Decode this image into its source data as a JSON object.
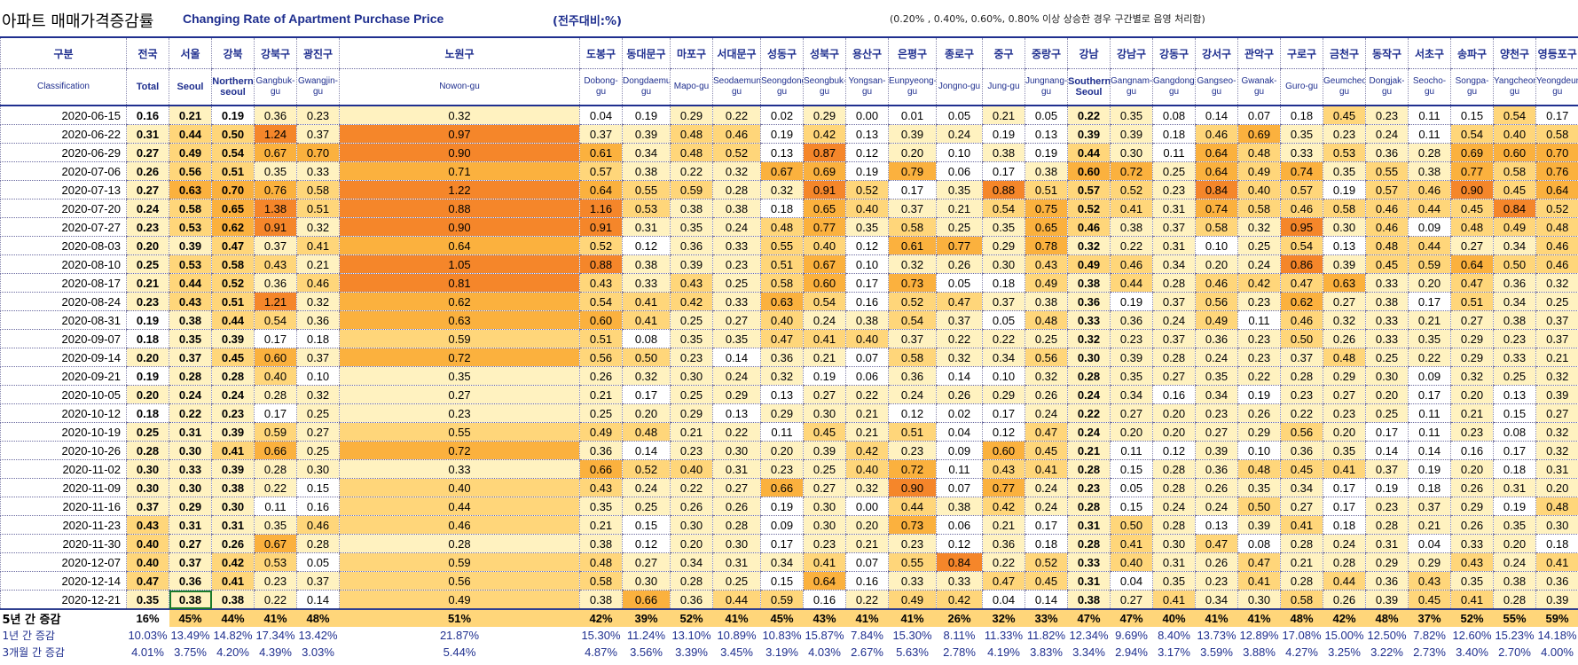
{
  "header": {
    "title_kr": "아파트 매매가격증감률",
    "title_en": "Changing Rate of Apartment Purchase Price",
    "unit": "(전주대비:%)",
    "note": "(0.20% , 0.40%, 0.60%, 0.80% 이상 상승한 경우 구간별로 음영 처리함)"
  },
  "colors": {
    "band_0": "#ffffff",
    "band_1": "#fff2c0",
    "band_2": "#ffd67a",
    "band_3": "#fbb13e",
    "band_4": "#f5862a",
    "header_text": "#1f2f8f"
  },
  "columns": [
    {
      "kr": "구분",
      "en": "Classification"
    },
    {
      "kr": "전국",
      "en": "Total",
      "bold": true
    },
    {
      "kr": "서울",
      "en": "Seoul",
      "bold": true
    },
    {
      "kr": "강북",
      "en": "Northern seoul",
      "bold": true
    },
    {
      "kr": "강북구",
      "en": "Gangbuk-gu"
    },
    {
      "kr": "광진구",
      "en": "Gwangjin-gu"
    },
    {
      "kr": "노원구",
      "en": "Nowon-gu"
    },
    {
      "kr": "도봉구",
      "en": "Dobong-gu"
    },
    {
      "kr": "동대문구",
      "en": "Dongdaemun-gu"
    },
    {
      "kr": "마포구",
      "en": "Mapo-gu"
    },
    {
      "kr": "서대문구",
      "en": "Seodaemun-gu"
    },
    {
      "kr": "성동구",
      "en": "Seongdong-gu"
    },
    {
      "kr": "성북구",
      "en": "Seongbuk-gu"
    },
    {
      "kr": "용산구",
      "en": "Yongsan-gu"
    },
    {
      "kr": "은평구",
      "en": "Eunpyeong-gu"
    },
    {
      "kr": "종로구",
      "en": "Jongno-gu"
    },
    {
      "kr": "중구",
      "en": "Jung-gu"
    },
    {
      "kr": "중랑구",
      "en": "Jungnang-gu"
    },
    {
      "kr": "강남",
      "en": "Southern Seoul",
      "bold": true
    },
    {
      "kr": "강남구",
      "en": "Gangnam-gu"
    },
    {
      "kr": "강동구",
      "en": "Gangdong-gu"
    },
    {
      "kr": "강서구",
      "en": "Gangseo-gu"
    },
    {
      "kr": "관악구",
      "en": "Gwanak-gu"
    },
    {
      "kr": "구로구",
      "en": "Guro-gu"
    },
    {
      "kr": "금천구",
      "en": "Geumcheon-gu"
    },
    {
      "kr": "동작구",
      "en": "Dongjak-gu"
    },
    {
      "kr": "서초구",
      "en": "Seocho-gu"
    },
    {
      "kr": "송파구",
      "en": "Songpa-gu"
    },
    {
      "kr": "양천구",
      "en": "Yangcheon-gu"
    },
    {
      "kr": "영등포구",
      "en": "Yeongdeungpo-gu"
    }
  ],
  "rows": [
    {
      "date": "2020-06-15",
      "values": [
        "0.16",
        "0.21",
        "0.19",
        "0.36",
        "0.23",
        "0.32",
        "0.04",
        "0.19",
        "0.29",
        "0.22",
        "0.02",
        "0.29",
        "0.00",
        "0.01",
        "0.05",
        "0.21",
        "0.05",
        "0.22",
        "0.35",
        "0.08",
        "0.14",
        "0.07",
        "0.18",
        "0.45",
        "0.23",
        "0.11",
        "0.15",
        "0.54",
        "0.17"
      ]
    },
    {
      "date": "2020-06-22",
      "values": [
        "0.31",
        "0.44",
        "0.50",
        "1.24",
        "0.37",
        "0.97",
        "0.37",
        "0.39",
        "0.48",
        "0.46",
        "0.19",
        "0.42",
        "0.13",
        "0.39",
        "0.24",
        "0.19",
        "0.13",
        "0.39",
        "0.39",
        "0.18",
        "0.46",
        "0.69",
        "0.35",
        "0.23",
        "0.24",
        "0.11",
        "0.54",
        "0.40",
        "0.58"
      ]
    },
    {
      "date": "2020-06-29",
      "values": [
        "0.27",
        "0.49",
        "0.54",
        "0.67",
        "0.70",
        "0.90",
        "0.61",
        "0.34",
        "0.48",
        "0.52",
        "0.13",
        "0.87",
        "0.12",
        "0.20",
        "0.10",
        "0.38",
        "0.19",
        "0.44",
        "0.30",
        "0.11",
        "0.64",
        "0.48",
        "0.33",
        "0.53",
        "0.36",
        "0.28",
        "0.69",
        "0.60",
        "0.70"
      ]
    },
    {
      "date": "2020-07-06",
      "values": [
        "0.26",
        "0.56",
        "0.51",
        "0.35",
        "0.33",
        "0.71",
        "0.57",
        "0.38",
        "0.22",
        "0.32",
        "0.67",
        "0.69",
        "0.19",
        "0.79",
        "0.06",
        "0.17",
        "0.38",
        "0.60",
        "0.72",
        "0.25",
        "0.64",
        "0.49",
        "0.74",
        "0.35",
        "0.55",
        "0.38",
        "0.77",
        "0.58",
        "0.76"
      ]
    },
    {
      "date": "2020-07-13",
      "values": [
        "0.27",
        "0.63",
        "0.70",
        "0.76",
        "0.58",
        "1.22",
        "0.64",
        "0.55",
        "0.59",
        "0.28",
        "0.32",
        "0.91",
        "0.52",
        "0.17",
        "0.35",
        "0.88",
        "0.51",
        "0.57",
        "0.52",
        "0.23",
        "0.84",
        "0.40",
        "0.57",
        "0.19",
        "0.57",
        "0.46",
        "0.90",
        "0.45",
        "0.64"
      ]
    },
    {
      "date": "2020-07-20",
      "values": [
        "0.24",
        "0.58",
        "0.65",
        "1.38",
        "0.51",
        "0.88",
        "1.16",
        "0.53",
        "0.38",
        "0.38",
        "0.18",
        "0.65",
        "0.40",
        "0.37",
        "0.21",
        "0.54",
        "0.75",
        "0.52",
        "0.41",
        "0.31",
        "0.74",
        "0.58",
        "0.46",
        "0.58",
        "0.46",
        "0.44",
        "0.45",
        "0.84",
        "0.52"
      ]
    },
    {
      "date": "2020-07-27",
      "values": [
        "0.23",
        "0.53",
        "0.62",
        "0.91",
        "0.32",
        "0.90",
        "0.91",
        "0.31",
        "0.35",
        "0.24",
        "0.48",
        "0.77",
        "0.35",
        "0.58",
        "0.25",
        "0.35",
        "0.65",
        "0.46",
        "0.38",
        "0.37",
        "0.58",
        "0.32",
        "0.95",
        "0.30",
        "0.46",
        "0.09",
        "0.48",
        "0.49",
        "0.48"
      ]
    },
    {
      "date": "2020-08-03",
      "values": [
        "0.20",
        "0.39",
        "0.47",
        "0.37",
        "0.41",
        "0.64",
        "0.52",
        "0.12",
        "0.36",
        "0.33",
        "0.55",
        "0.40",
        "0.12",
        "0.61",
        "0.77",
        "0.29",
        "0.78",
        "0.32",
        "0.22",
        "0.31",
        "0.10",
        "0.25",
        "0.54",
        "0.13",
        "0.48",
        "0.44",
        "0.27",
        "0.34",
        "0.46"
      ]
    },
    {
      "date": "2020-08-10",
      "values": [
        "0.25",
        "0.53",
        "0.58",
        "0.43",
        "0.21",
        "1.05",
        "0.88",
        "0.38",
        "0.39",
        "0.23",
        "0.51",
        "0.67",
        "0.10",
        "0.32",
        "0.26",
        "0.30",
        "0.43",
        "0.49",
        "0.46",
        "0.34",
        "0.20",
        "0.24",
        "0.86",
        "0.39",
        "0.45",
        "0.59",
        "0.64",
        "0.50",
        "0.46"
      ]
    },
    {
      "date": "2020-08-17",
      "values": [
        "0.21",
        "0.44",
        "0.52",
        "0.36",
        "0.46",
        "0.81",
        "0.43",
        "0.33",
        "0.43",
        "0.25",
        "0.58",
        "0.60",
        "0.17",
        "0.73",
        "0.05",
        "0.18",
        "0.49",
        "0.38",
        "0.44",
        "0.28",
        "0.46",
        "0.42",
        "0.47",
        "0.63",
        "0.33",
        "0.20",
        "0.47",
        "0.36",
        "0.32"
      ]
    },
    {
      "date": "2020-08-24",
      "values": [
        "0.23",
        "0.43",
        "0.51",
        "1.21",
        "0.32",
        "0.62",
        "0.54",
        "0.41",
        "0.42",
        "0.33",
        "0.63",
        "0.54",
        "0.16",
        "0.52",
        "0.47",
        "0.37",
        "0.38",
        "0.36",
        "0.19",
        "0.37",
        "0.56",
        "0.23",
        "0.62",
        "0.27",
        "0.38",
        "0.17",
        "0.51",
        "0.34",
        "0.25"
      ]
    },
    {
      "date": "2020-08-31",
      "values": [
        "0.19",
        "0.38",
        "0.44",
        "0.54",
        "0.36",
        "0.63",
        "0.60",
        "0.41",
        "0.25",
        "0.27",
        "0.40",
        "0.24",
        "0.38",
        "0.54",
        "0.37",
        "0.05",
        "0.48",
        "0.33",
        "0.36",
        "0.24",
        "0.49",
        "0.11",
        "0.46",
        "0.32",
        "0.33",
        "0.21",
        "0.27",
        "0.38",
        "0.37"
      ]
    },
    {
      "date": "2020-09-07",
      "values": [
        "0.18",
        "0.35",
        "0.39",
        "0.17",
        "0.18",
        "0.59",
        "0.51",
        "0.08",
        "0.35",
        "0.35",
        "0.47",
        "0.41",
        "0.40",
        "0.37",
        "0.22",
        "0.22",
        "0.25",
        "0.32",
        "0.23",
        "0.37",
        "0.36",
        "0.23",
        "0.50",
        "0.26",
        "0.33",
        "0.35",
        "0.29",
        "0.23",
        "0.37"
      ]
    },
    {
      "date": "2020-09-14",
      "values": [
        "0.20",
        "0.37",
        "0.45",
        "0.60",
        "0.37",
        "0.72",
        "0.56",
        "0.50",
        "0.23",
        "0.14",
        "0.36",
        "0.21",
        "0.07",
        "0.58",
        "0.32",
        "0.34",
        "0.56",
        "0.30",
        "0.39",
        "0.28",
        "0.24",
        "0.23",
        "0.37",
        "0.48",
        "0.25",
        "0.22",
        "0.29",
        "0.33",
        "0.21"
      ]
    },
    {
      "date": "2020-09-21",
      "values": [
        "0.19",
        "0.28",
        "0.28",
        "0.40",
        "0.10",
        "0.35",
        "0.26",
        "0.32",
        "0.30",
        "0.24",
        "0.32",
        "0.19",
        "0.06",
        "0.36",
        "0.14",
        "0.10",
        "0.32",
        "0.28",
        "0.35",
        "0.27",
        "0.35",
        "0.22",
        "0.28",
        "0.29",
        "0.30",
        "0.09",
        "0.32",
        "0.25",
        "0.32"
      ]
    },
    {
      "date": "2020-10-05",
      "values": [
        "0.20",
        "0.24",
        "0.24",
        "0.28",
        "0.32",
        "0.27",
        "0.21",
        "0.17",
        "0.25",
        "0.29",
        "0.13",
        "0.27",
        "0.22",
        "0.24",
        "0.26",
        "0.29",
        "0.26",
        "0.24",
        "0.34",
        "0.16",
        "0.34",
        "0.19",
        "0.23",
        "0.27",
        "0.20",
        "0.17",
        "0.20",
        "0.13",
        "0.39"
      ]
    },
    {
      "date": "2020-10-12",
      "values": [
        "0.18",
        "0.22",
        "0.23",
        "0.17",
        "0.25",
        "0.23",
        "0.25",
        "0.20",
        "0.29",
        "0.13",
        "0.29",
        "0.30",
        "0.21",
        "0.12",
        "0.02",
        "0.17",
        "0.24",
        "0.22",
        "0.27",
        "0.20",
        "0.23",
        "0.26",
        "0.22",
        "0.23",
        "0.25",
        "0.11",
        "0.21",
        "0.15",
        "0.27"
      ]
    },
    {
      "date": "2020-10-19",
      "values": [
        "0.25",
        "0.31",
        "0.39",
        "0.59",
        "0.27",
        "0.55",
        "0.49",
        "0.48",
        "0.21",
        "0.22",
        "0.11",
        "0.45",
        "0.21",
        "0.51",
        "0.04",
        "0.12",
        "0.47",
        "0.24",
        "0.20",
        "0.20",
        "0.27",
        "0.29",
        "0.56",
        "0.20",
        "0.17",
        "0.11",
        "0.23",
        "0.08",
        "0.32"
      ]
    },
    {
      "date": "2020-10-26",
      "values": [
        "0.28",
        "0.30",
        "0.41",
        "0.66",
        "0.25",
        "0.72",
        "0.36",
        "0.14",
        "0.23",
        "0.30",
        "0.20",
        "0.39",
        "0.42",
        "0.23",
        "0.09",
        "0.60",
        "0.45",
        "0.21",
        "0.11",
        "0.12",
        "0.39",
        "0.10",
        "0.36",
        "0.35",
        "0.14",
        "0.14",
        "0.16",
        "0.17",
        "0.32"
      ]
    },
    {
      "date": "2020-11-02",
      "values": [
        "0.30",
        "0.33",
        "0.39",
        "0.28",
        "0.30",
        "0.33",
        "0.66",
        "0.52",
        "0.40",
        "0.31",
        "0.23",
        "0.25",
        "0.40",
        "0.72",
        "0.11",
        "0.43",
        "0.41",
        "0.28",
        "0.15",
        "0.28",
        "0.36",
        "0.48",
        "0.45",
        "0.41",
        "0.37",
        "0.19",
        "0.20",
        "0.18",
        "0.31"
      ]
    },
    {
      "date": "2020-11-09",
      "values": [
        "0.30",
        "0.30",
        "0.38",
        "0.22",
        "0.15",
        "0.40",
        "0.43",
        "0.24",
        "0.22",
        "0.27",
        "0.66",
        "0.27",
        "0.32",
        "0.90",
        "0.07",
        "0.77",
        "0.24",
        "0.23",
        "0.05",
        "0.28",
        "0.26",
        "0.35",
        "0.34",
        "0.17",
        "0.19",
        "0.18",
        "0.26",
        "0.31",
        "0.20"
      ]
    },
    {
      "date": "2020-11-16",
      "values": [
        "0.37",
        "0.29",
        "0.30",
        "0.11",
        "0.16",
        "0.44",
        "0.35",
        "0.25",
        "0.26",
        "0.26",
        "0.19",
        "0.30",
        "0.00",
        "0.44",
        "0.38",
        "0.42",
        "0.24",
        "0.28",
        "0.15",
        "0.24",
        "0.24",
        "0.50",
        "0.27",
        "0.17",
        "0.23",
        "0.37",
        "0.29",
        "0.19",
        "0.48"
      ]
    },
    {
      "date": "2020-11-23",
      "values": [
        "0.43",
        "0.31",
        "0.31",
        "0.35",
        "0.46",
        "0.46",
        "0.21",
        "0.15",
        "0.30",
        "0.28",
        "0.09",
        "0.30",
        "0.20",
        "0.73",
        "0.06",
        "0.21",
        "0.17",
        "0.31",
        "0.50",
        "0.28",
        "0.13",
        "0.39",
        "0.41",
        "0.18",
        "0.28",
        "0.21",
        "0.26",
        "0.35",
        "0.30"
      ]
    },
    {
      "date": "2020-11-30",
      "values": [
        "0.40",
        "0.27",
        "0.26",
        "0.67",
        "0.28",
        "0.28",
        "0.38",
        "0.12",
        "0.20",
        "0.30",
        "0.17",
        "0.23",
        "0.21",
        "0.23",
        "0.12",
        "0.36",
        "0.18",
        "0.28",
        "0.41",
        "0.30",
        "0.47",
        "0.08",
        "0.28",
        "0.24",
        "0.31",
        "0.04",
        "0.33",
        "0.20",
        "0.18"
      ]
    },
    {
      "date": "2020-12-07",
      "values": [
        "0.40",
        "0.37",
        "0.42",
        "0.53",
        "0.05",
        "0.59",
        "0.48",
        "0.27",
        "0.34",
        "0.31",
        "0.34",
        "0.41",
        "0.07",
        "0.55",
        "0.84",
        "0.22",
        "0.52",
        "0.33",
        "0.40",
        "0.31",
        "0.26",
        "0.47",
        "0.21",
        "0.28",
        "0.29",
        "0.29",
        "0.43",
        "0.24",
        "0.41"
      ]
    },
    {
      "date": "2020-12-14",
      "values": [
        "0.47",
        "0.36",
        "0.41",
        "0.23",
        "0.37",
        "0.56",
        "0.58",
        "0.30",
        "0.28",
        "0.25",
        "0.15",
        "0.64",
        "0.16",
        "0.33",
        "0.33",
        "0.47",
        "0.45",
        "0.31",
        "0.04",
        "0.35",
        "0.23",
        "0.41",
        "0.28",
        "0.44",
        "0.36",
        "0.43",
        "0.35",
        "0.38",
        "0.36"
      ]
    },
    {
      "date": "2020-12-21",
      "values": [
        "0.35",
        "0.38",
        "0.38",
        "0.22",
        "0.14",
        "0.49",
        "0.38",
        "0.66",
        "0.36",
        "0.44",
        "0.59",
        "0.16",
        "0.22",
        "0.49",
        "0.42",
        "0.04",
        "0.14",
        "0.38",
        "0.27",
        "0.41",
        "0.34",
        "0.30",
        "0.58",
        "0.26",
        "0.39",
        "0.45",
        "0.41",
        "0.28",
        "0.39"
      ]
    }
  ],
  "summary": [
    {
      "label": "5년 간 증감",
      "values": [
        "16%",
        "45%",
        "44%",
        "41%",
        "48%",
        "51%",
        "42%",
        "39%",
        "52%",
        "41%",
        "45%",
        "43%",
        "41%",
        "41%",
        "26%",
        "32%",
        "33%",
        "47%",
        "47%",
        "40%",
        "41%",
        "41%",
        "48%",
        "42%",
        "48%",
        "37%",
        "52%",
        "55%",
        "59%"
      ]
    },
    {
      "label": "1년 간 증감",
      "values": [
        "10.03%",
        "13.49%",
        "14.82%",
        "17.34%",
        "13.42%",
        "21.87%",
        "15.30%",
        "11.24%",
        "13.10%",
        "10.89%",
        "10.83%",
        "15.87%",
        "7.84%",
        "15.30%",
        "8.11%",
        "11.33%",
        "11.82%",
        "12.34%",
        "9.69%",
        "8.40%",
        "13.73%",
        "12.89%",
        "17.08%",
        "15.00%",
        "12.50%",
        "7.82%",
        "12.60%",
        "15.23%",
        "14.18%"
      ]
    },
    {
      "label": "3개월 간 증감",
      "values": [
        "4.01%",
        "3.75%",
        "4.20%",
        "4.39%",
        "3.03%",
        "5.44%",
        "4.87%",
        "3.56%",
        "3.39%",
        "3.45%",
        "3.19%",
        "4.03%",
        "2.67%",
        "5.63%",
        "2.78%",
        "4.19%",
        "3.83%",
        "3.34%",
        "2.94%",
        "3.17%",
        "3.59%",
        "3.88%",
        "4.27%",
        "3.25%",
        "3.22%",
        "2.73%",
        "3.40%",
        "2.70%",
        "4.00%"
      ]
    }
  ],
  "summary_band_5y": [
    "#ffffff",
    "#ffd67a",
    "#ffd67a",
    "#ffd67a",
    "#ffd67a",
    "#ffd67a",
    "#ffd67a",
    "#ffd67a",
    "#ffd67a",
    "#ffd67a",
    "#ffd67a",
    "#ffd67a",
    "#ffd67a",
    "#ffd67a",
    "#ffd67a",
    "#ffd67a",
    "#ffd67a",
    "#ffd67a",
    "#ffd67a",
    "#ffd67a",
    "#ffd67a",
    "#ffd67a",
    "#ffd67a",
    "#ffd67a",
    "#ffd67a",
    "#ffd67a",
    "#ffd67a",
    "#ffd67a",
    "#ffd67a"
  ]
}
